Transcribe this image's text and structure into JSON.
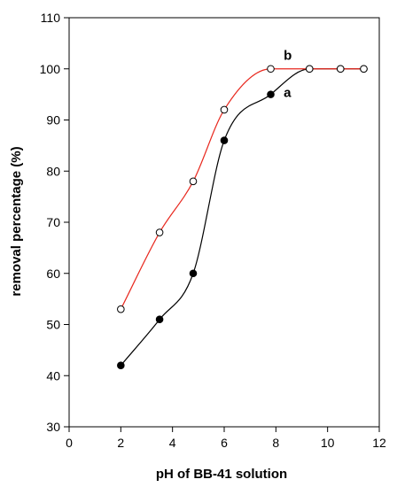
{
  "chart_data": {
    "type": "line",
    "xlabel": "pH of BB-41 solution",
    "ylabel": "removal percentage (%)",
    "xlim": [
      0,
      12
    ],
    "ylim": [
      30,
      110
    ],
    "xticks": [
      0,
      2,
      4,
      6,
      8,
      10,
      12
    ],
    "yticks": [
      30,
      40,
      50,
      60,
      70,
      80,
      90,
      100,
      110
    ],
    "grid": false,
    "series": [
      {
        "name": "a",
        "marker": "filled-circle",
        "color": "#000000",
        "x": [
          2,
          3.5,
          4.8,
          6,
          7.8,
          9.3,
          10.5,
          11.4
        ],
        "y": [
          42,
          51,
          60,
          86,
          95,
          100,
          100,
          100
        ]
      },
      {
        "name": "b",
        "marker": "open-circle",
        "color": "#e8281e",
        "x": [
          2,
          3.5,
          4.8,
          6,
          7.8,
          9.3,
          10.5,
          11.4
        ],
        "y": [
          53,
          68,
          78,
          92,
          100,
          100,
          100,
          100
        ]
      }
    ]
  }
}
